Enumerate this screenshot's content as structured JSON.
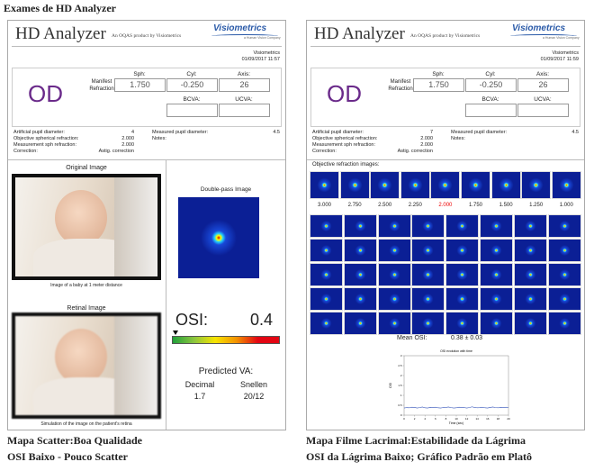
{
  "title": "Exames de HD Analyzer",
  "panels": [
    {
      "brand": "HD Analyzer",
      "tagline": "An OQAS product by Visiometrics",
      "logo": "Visiometrics",
      "logo_sub": "a Human Vision Company",
      "company": "Visiometrics",
      "date": "01/09/2017 11:57",
      "eye": "OD",
      "refraction_label": "Manifest Refraction",
      "sph_label": "Sph:",
      "cyl_label": "Cyl:",
      "axis_label": "Axis:",
      "sph": "1.750",
      "cyl": "-0.250",
      "axis": "26",
      "bcva_label": "BCVA:",
      "ucva_label": "UCVA:",
      "params": [
        [
          "Artificial pupil diameter:",
          "4"
        ],
        [
          "Objective spherical refraction:",
          "2.000"
        ],
        [
          "Measurement sph refraction:",
          "2.000"
        ],
        [
          "Correction:",
          "Astig. correction"
        ]
      ],
      "measured_label": "Measured pupil diameter:",
      "measured": "4.5",
      "notes_label": "Notes:",
      "original_title": "Original Image",
      "original_caption": "Image of a baby at 1 meter distance",
      "retinal_title": "Retinal Image",
      "retinal_caption": "Simulation of the image on the patient's retina",
      "doublepass_title": "Double-pass Image",
      "osi_label": "OSI:",
      "osi": "0.4",
      "va_title": "Predicted VA:",
      "va_headers": [
        "Decimal",
        "Snellen"
      ],
      "va_values": [
        "1.7",
        "20/12"
      ]
    },
    {
      "brand": "HD Analyzer",
      "tagline": "An OQAS product by Visiometrics",
      "logo": "Visiometrics",
      "logo_sub": "a Human Vision Company",
      "company": "Visiometrics",
      "date": "01/09/2017 11:59",
      "eye": "OD",
      "refraction_label": "Manifest Refraction",
      "sph_label": "Sph:",
      "cyl_label": "Cyl:",
      "axis_label": "Axis:",
      "sph": "1.750",
      "cyl": "-0.250",
      "axis": "26",
      "bcva_label": "BCVA:",
      "ucva_label": "UCVA:",
      "params": [
        [
          "Artificial pupil diameter:",
          "7"
        ],
        [
          "Objective spherical refraction:",
          "2.000"
        ],
        [
          "Measurement sph refraction:",
          "2.000"
        ],
        [
          "Correction:",
          "Astig. correction"
        ]
      ],
      "measured_label": "Measured pupil diameter:",
      "measured": "4.5",
      "notes_label": "Notes:",
      "refraction_title": "Objective refraction images:",
      "refraction_values": [
        "3.000",
        "2.750",
        "2.500",
        "2.250",
        "2.000",
        "1.750",
        "1.500",
        "1.250",
        "1.000"
      ],
      "selected": 4,
      "mean_label": "Mean OSI:",
      "mean_value": "0.38 ± 0.03",
      "chart": {
        "type": "line",
        "title": "OSI evolution with time",
        "x_label": "Time (sec)",
        "y_label": "OSI",
        "x": [
          0,
          0.5,
          1,
          1.5,
          2,
          2.5,
          3,
          3.5,
          4,
          4.5,
          5,
          5.5,
          6,
          6.5,
          7,
          7.5,
          8,
          8.5,
          9,
          9.5,
          10,
          10.5,
          11,
          11.5,
          12,
          12.5,
          13,
          13.5,
          14,
          14.5,
          15,
          15.5,
          16,
          16.5,
          17,
          17.5,
          18,
          18.5,
          19,
          19.5,
          20
        ],
        "values": [
          0.36,
          0.38,
          0.37,
          0.4,
          0.39,
          0.36,
          0.38,
          0.41,
          0.37,
          0.36,
          0.39,
          0.38,
          0.4,
          0.37,
          0.36,
          0.38,
          0.39,
          0.41,
          0.38,
          0.36,
          0.37,
          0.4,
          0.39,
          0.38,
          0.36,
          0.38,
          0.42,
          0.39,
          0.37,
          0.38,
          0.4,
          0.37,
          0.36,
          0.39,
          0.41,
          0.38,
          0.37,
          0.39,
          0.38,
          0.4,
          0.38
        ],
        "xlim": [
          0,
          20
        ],
        "ylim": [
          0,
          3
        ],
        "xticks": [
          0,
          2,
          4,
          6,
          8,
          10,
          12,
          14,
          16,
          18,
          20
        ],
        "yticks": [
          0,
          0.5,
          1,
          1.5,
          2,
          2.5,
          3
        ]
      }
    }
  ],
  "captions": [
    [
      "Mapa Scatter:Boa Qualidade",
      "OSI Baixo - Pouco Scatter"
    ],
    [
      "Mapa Filme Lacrimal:Estabilidade da Lágrima",
      "OSI da Lágrima Baixo; Gráfico Padrão em Platô"
    ]
  ]
}
